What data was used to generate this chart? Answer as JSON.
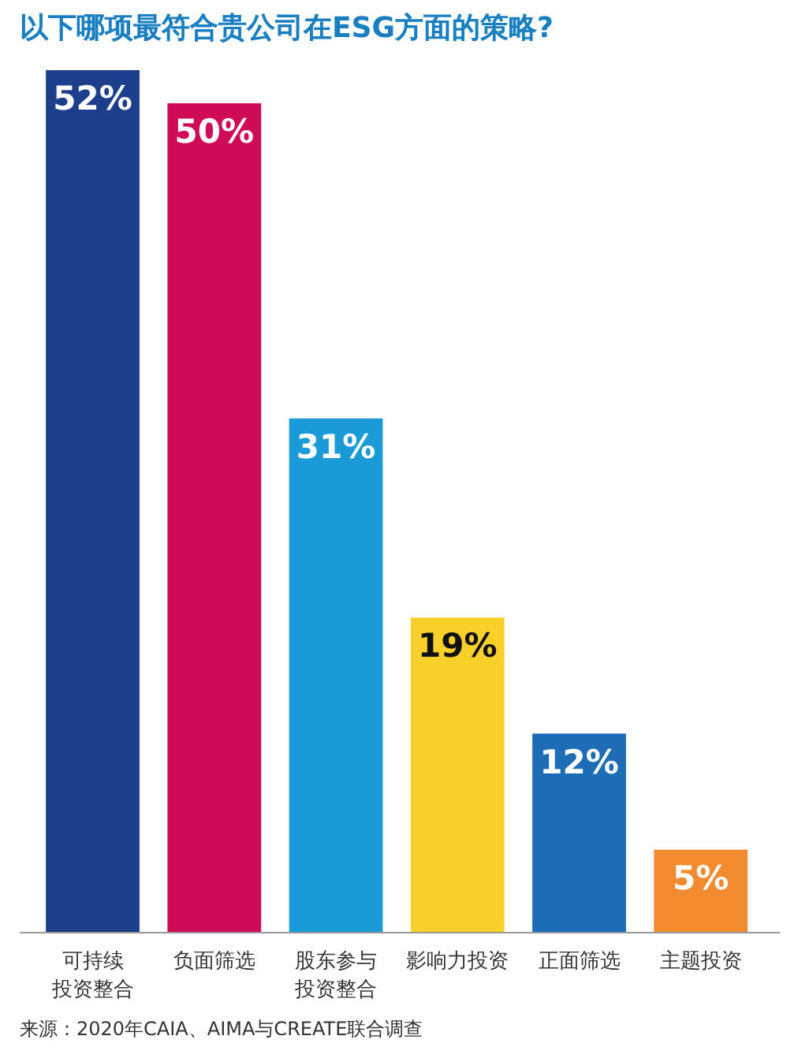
{
  "chart_data": {
    "type": "bar",
    "title": "以下哪项最符合贵公司在ESG方面的策略?",
    "categories": [
      "可持续投资整合",
      "负面筛选",
      "股东参与投资整合",
      "影响力投资",
      "正面筛选",
      "主题投资"
    ],
    "values": [
      52,
      50,
      31,
      19,
      12,
      5
    ],
    "colors": [
      "#1d3f8b",
      "#cf0a56",
      "#1a9ad7",
      "#f9d02a",
      "#1d6db6",
      "#f28a30"
    ],
    "data_labels": true,
    "value_labels": [
      "52%",
      "50%",
      "31%",
      "19%",
      "12%",
      "5%"
    ],
    "grid": false,
    "annotations": [
      "来源：2020年CAIA、AIMA与CREATE联合调查"
    ]
  }
}
